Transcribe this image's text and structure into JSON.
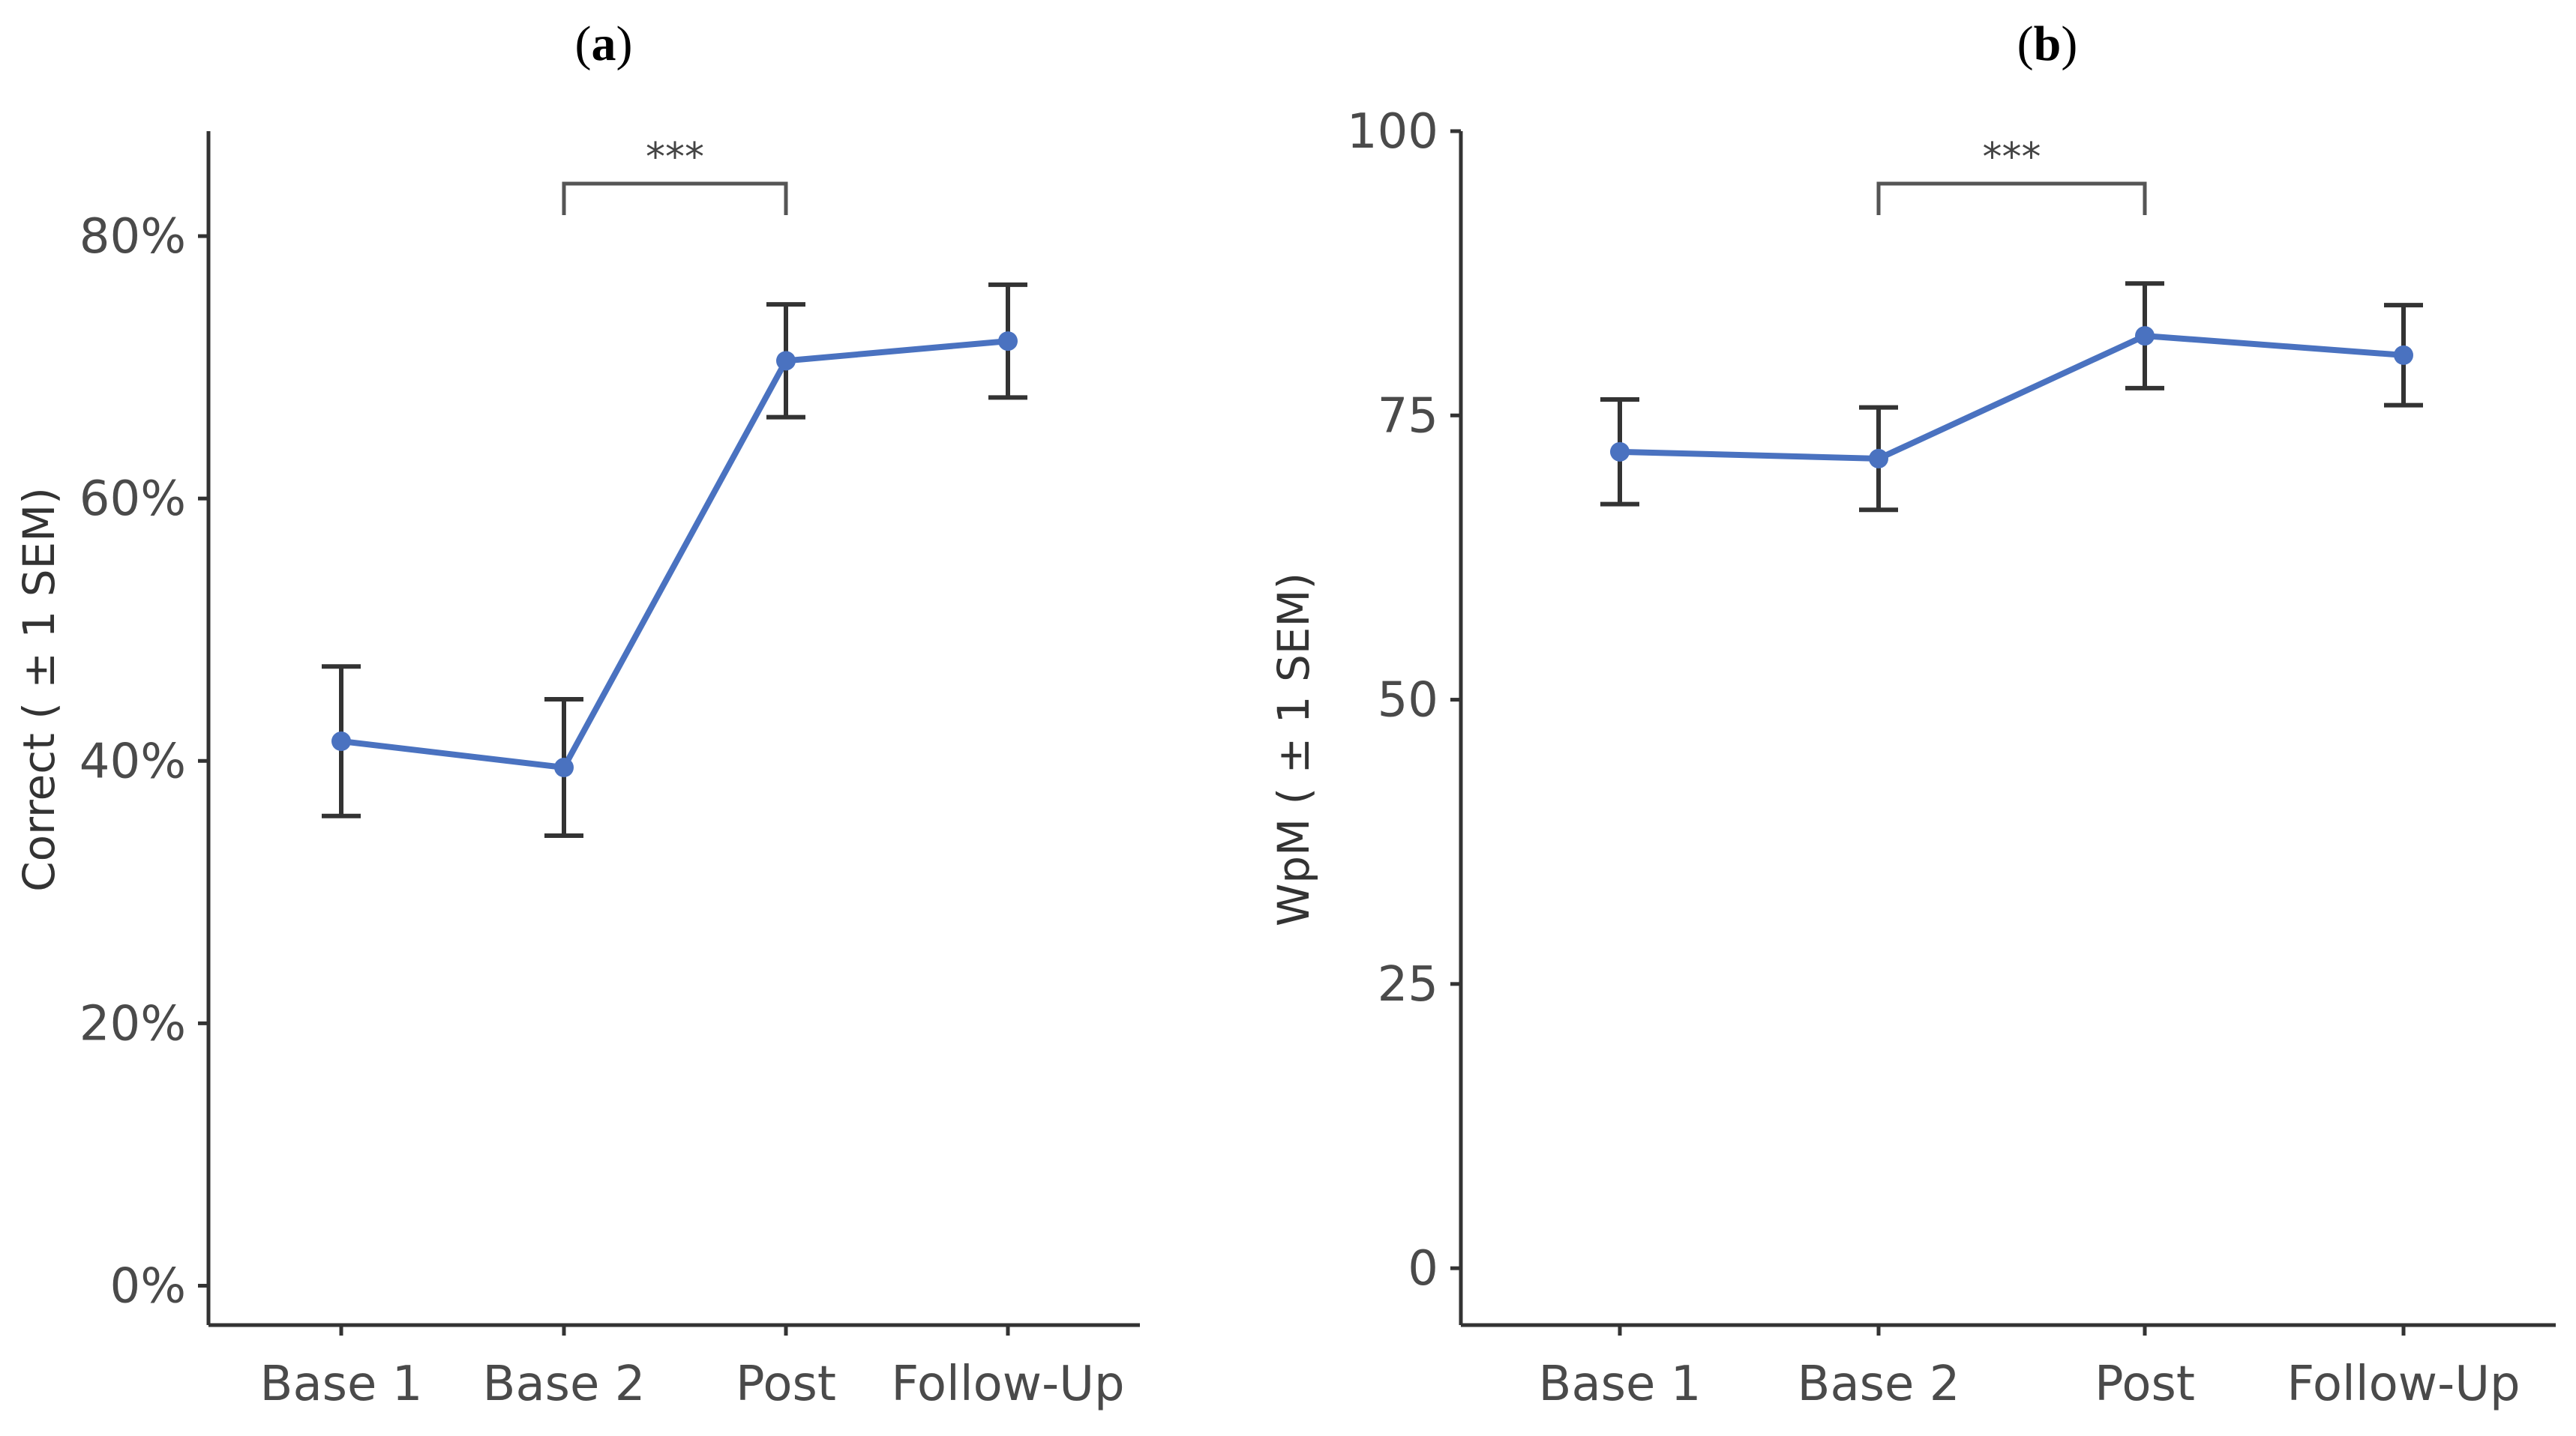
{
  "chart_data": [
    {
      "type": "line",
      "panel_label": "a",
      "categories": [
        "Base 1",
        "Base 2",
        "Post",
        "Follow-Up"
      ],
      "series": [
        {
          "name": "Correct",
          "values": [
            0.415,
            0.395,
            0.705,
            0.72
          ],
          "sem": [
            0.057,
            0.052,
            0.043,
            0.043
          ]
        }
      ],
      "ylabel": "Correct ( ± 1 SEM)",
      "xlabel": "",
      "ylim": [
        -0.03,
        0.88
      ],
      "yticks": [
        0,
        0.2,
        0.4,
        0.6,
        0.8
      ],
      "ytick_labels": [
        "0%",
        "20%",
        "40%",
        "60%",
        "80%"
      ],
      "grid": false,
      "significance": {
        "from": "Base 2",
        "to": "Post",
        "label": "***"
      }
    },
    {
      "type": "line",
      "panel_label": "b",
      "categories": [
        "Base 1",
        "Base 2",
        "Post",
        "Follow-Up"
      ],
      "series": [
        {
          "name": "WpM",
          "values": [
            71.8,
            71.2,
            82,
            80.3
          ],
          "sem": [
            4.6,
            4.5,
            4.6,
            4.4
          ]
        }
      ],
      "ylabel": "WpM ( ± 1 SEM)",
      "xlabel": "",
      "ylim": [
        -5,
        100
      ],
      "yticks": [
        0,
        25,
        50,
        75,
        100
      ],
      "ytick_labels": [
        "0",
        "25",
        "50",
        "75",
        "100"
      ],
      "grid": false,
      "significance": {
        "from": "Base 2",
        "to": "Post",
        "label": "***"
      }
    }
  ],
  "colors": {
    "series": "#4a72c0",
    "axis": "#333333"
  }
}
